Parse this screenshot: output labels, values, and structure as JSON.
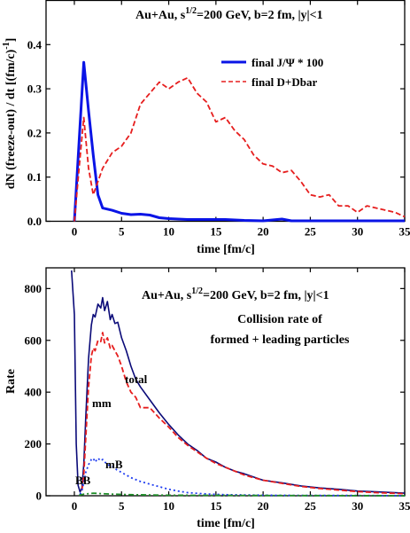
{
  "chart_data": [
    {
      "type": "line",
      "title": "Au+Au, s^1/2=200 GeV, b=2 fm, |y|<1",
      "xlabel": "time [fm/c]",
      "ylabel": "dN (freeze-out) / dt   [(fm/c)^-1]",
      "xlim": [
        -3,
        35
      ],
      "ylim": [
        0,
        0.5
      ],
      "xticks": [
        0,
        5,
        10,
        15,
        20,
        25,
        30,
        35
      ],
      "yticks": [
        0.0,
        0.1,
        0.2,
        0.3,
        0.4
      ],
      "ytick_labels": [
        "0.0",
        "0.1",
        "0.2",
        "0.3",
        "0.4"
      ],
      "legend_position": "top-right",
      "series": [
        {
          "name": "final J/Ψ * 100",
          "color": "#0a14e6",
          "style": "solid",
          "x": [
            0,
            0.5,
            1,
            1.5,
            2,
            2.5,
            3,
            4,
            5,
            6,
            7,
            8,
            9,
            10,
            12,
            14,
            16,
            18,
            20,
            22,
            23,
            25,
            30,
            35
          ],
          "y": [
            0,
            0.18,
            0.36,
            0.25,
            0.15,
            0.06,
            0.03,
            0.025,
            0.018,
            0.015,
            0.016,
            0.014,
            0.008,
            0.006,
            0.004,
            0.004,
            0.004,
            0.002,
            0.001,
            0.005,
            0.001,
            0.001,
            0.001,
            0.001
          ]
        },
        {
          "name": "final D+Dbar",
          "color": "#e61e1e",
          "style": "dashed",
          "x": [
            0,
            0.5,
            1,
            1.5,
            2,
            3,
            4,
            5,
            6,
            7,
            8,
            9,
            10,
            11,
            12,
            13,
            14,
            15,
            16,
            17,
            18,
            19,
            20,
            21,
            22,
            23,
            24,
            25,
            26,
            27,
            28,
            29,
            30,
            31,
            32,
            33,
            34,
            35
          ],
          "y": [
            0.0,
            0.12,
            0.235,
            0.12,
            0.06,
            0.12,
            0.155,
            0.17,
            0.2,
            0.265,
            0.29,
            0.315,
            0.3,
            0.315,
            0.325,
            0.29,
            0.27,
            0.225,
            0.235,
            0.205,
            0.185,
            0.15,
            0.13,
            0.125,
            0.11,
            0.115,
            0.09,
            0.06,
            0.055,
            0.06,
            0.035,
            0.035,
            0.02,
            0.035,
            0.03,
            0.025,
            0.02,
            0.01
          ]
        }
      ]
    },
    {
      "type": "line",
      "title": "Au+Au, s^1/2=200 GeV, b=2 fm, |y|<1",
      "subtitle_lines": [
        "Collision rate of",
        "formed + leading particles"
      ],
      "xlabel": "time [fm/c]",
      "ylabel": "Rate",
      "xlim": [
        -3,
        35
      ],
      "ylim": [
        0,
        880
      ],
      "xticks": [
        0,
        5,
        10,
        15,
        20,
        25,
        30,
        35
      ],
      "yticks": [
        0,
        200,
        400,
        600,
        800
      ],
      "series": [
        {
          "name": "total",
          "color": "#0a0a78",
          "style": "solid",
          "x": [
            -0.3,
            0,
            0.2,
            0.4,
            0.6,
            0.8,
            1.0,
            1.2,
            1.5,
            1.8,
            2.0,
            2.2,
            2.5,
            2.8,
            3.0,
            3.2,
            3.5,
            3.8,
            4.0,
            4.3,
            4.6,
            5.0,
            5.5,
            6,
            6.5,
            7,
            8,
            9,
            10,
            11,
            12,
            13,
            14,
            15,
            16,
            17,
            18,
            20,
            22,
            24,
            26,
            28,
            30,
            32,
            35
          ],
          "y": [
            870,
            700,
            200,
            40,
            15,
            30,
            120,
            300,
            530,
            660,
            700,
            690,
            740,
            725,
            765,
            715,
            750,
            680,
            700,
            665,
            670,
            610,
            560,
            500,
            450,
            420,
            370,
            320,
            275,
            235,
            200,
            175,
            145,
            130,
            110,
            95,
            85,
            60,
            50,
            38,
            30,
            25,
            18,
            15,
            10
          ]
        },
        {
          "name": "mm",
          "color": "#e61e1e",
          "style": "dashed",
          "x": [
            0.8,
            1.0,
            1.2,
            1.5,
            1.8,
            2.0,
            2.2,
            2.5,
            2.8,
            3.0,
            3.2,
            3.5,
            3.8,
            4.0,
            4.3,
            4.6,
            5.0,
            5.5,
            6,
            6.5,
            7,
            8,
            9,
            10,
            11,
            12,
            13,
            14,
            15,
            16,
            18,
            20,
            22,
            24,
            26,
            28,
            30,
            32,
            35
          ],
          "y": [
            20,
            80,
            220,
            420,
            540,
            570,
            560,
            600,
            595,
            630,
            590,
            610,
            570,
            580,
            560,
            540,
            500,
            440,
            400,
            380,
            340,
            340,
            300,
            265,
            225,
            195,
            170,
            145,
            125,
            110,
            80,
            60,
            48,
            36,
            28,
            22,
            16,
            12,
            8
          ]
        },
        {
          "name": "mB",
          "color": "#1e3cf0",
          "style": "dotted",
          "x": [
            0.6,
            0.8,
            1.0,
            1.2,
            1.5,
            1.8,
            2.0,
            2.2,
            2.5,
            2.8,
            3.0,
            3.5,
            4.0,
            4.5,
            5,
            6,
            7,
            8,
            9,
            10,
            11,
            12,
            14,
            16,
            18,
            20,
            25,
            30,
            35
          ],
          "y": [
            5,
            20,
            50,
            90,
            120,
            140,
            145,
            130,
            145,
            135,
            140,
            120,
            115,
            100,
            90,
            70,
            55,
            45,
            35,
            25,
            18,
            12,
            7,
            4,
            3,
            2,
            1,
            1,
            0
          ]
        },
        {
          "name": "BB",
          "color": "#1e8c28",
          "style": "dash-dot",
          "x": [
            0.5,
            1,
            1.5,
            2,
            3,
            4,
            6,
            10,
            20,
            35
          ],
          "y": [
            2,
            6,
            8,
            10,
            8,
            6,
            4,
            2,
            1,
            0
          ]
        }
      ]
    }
  ]
}
